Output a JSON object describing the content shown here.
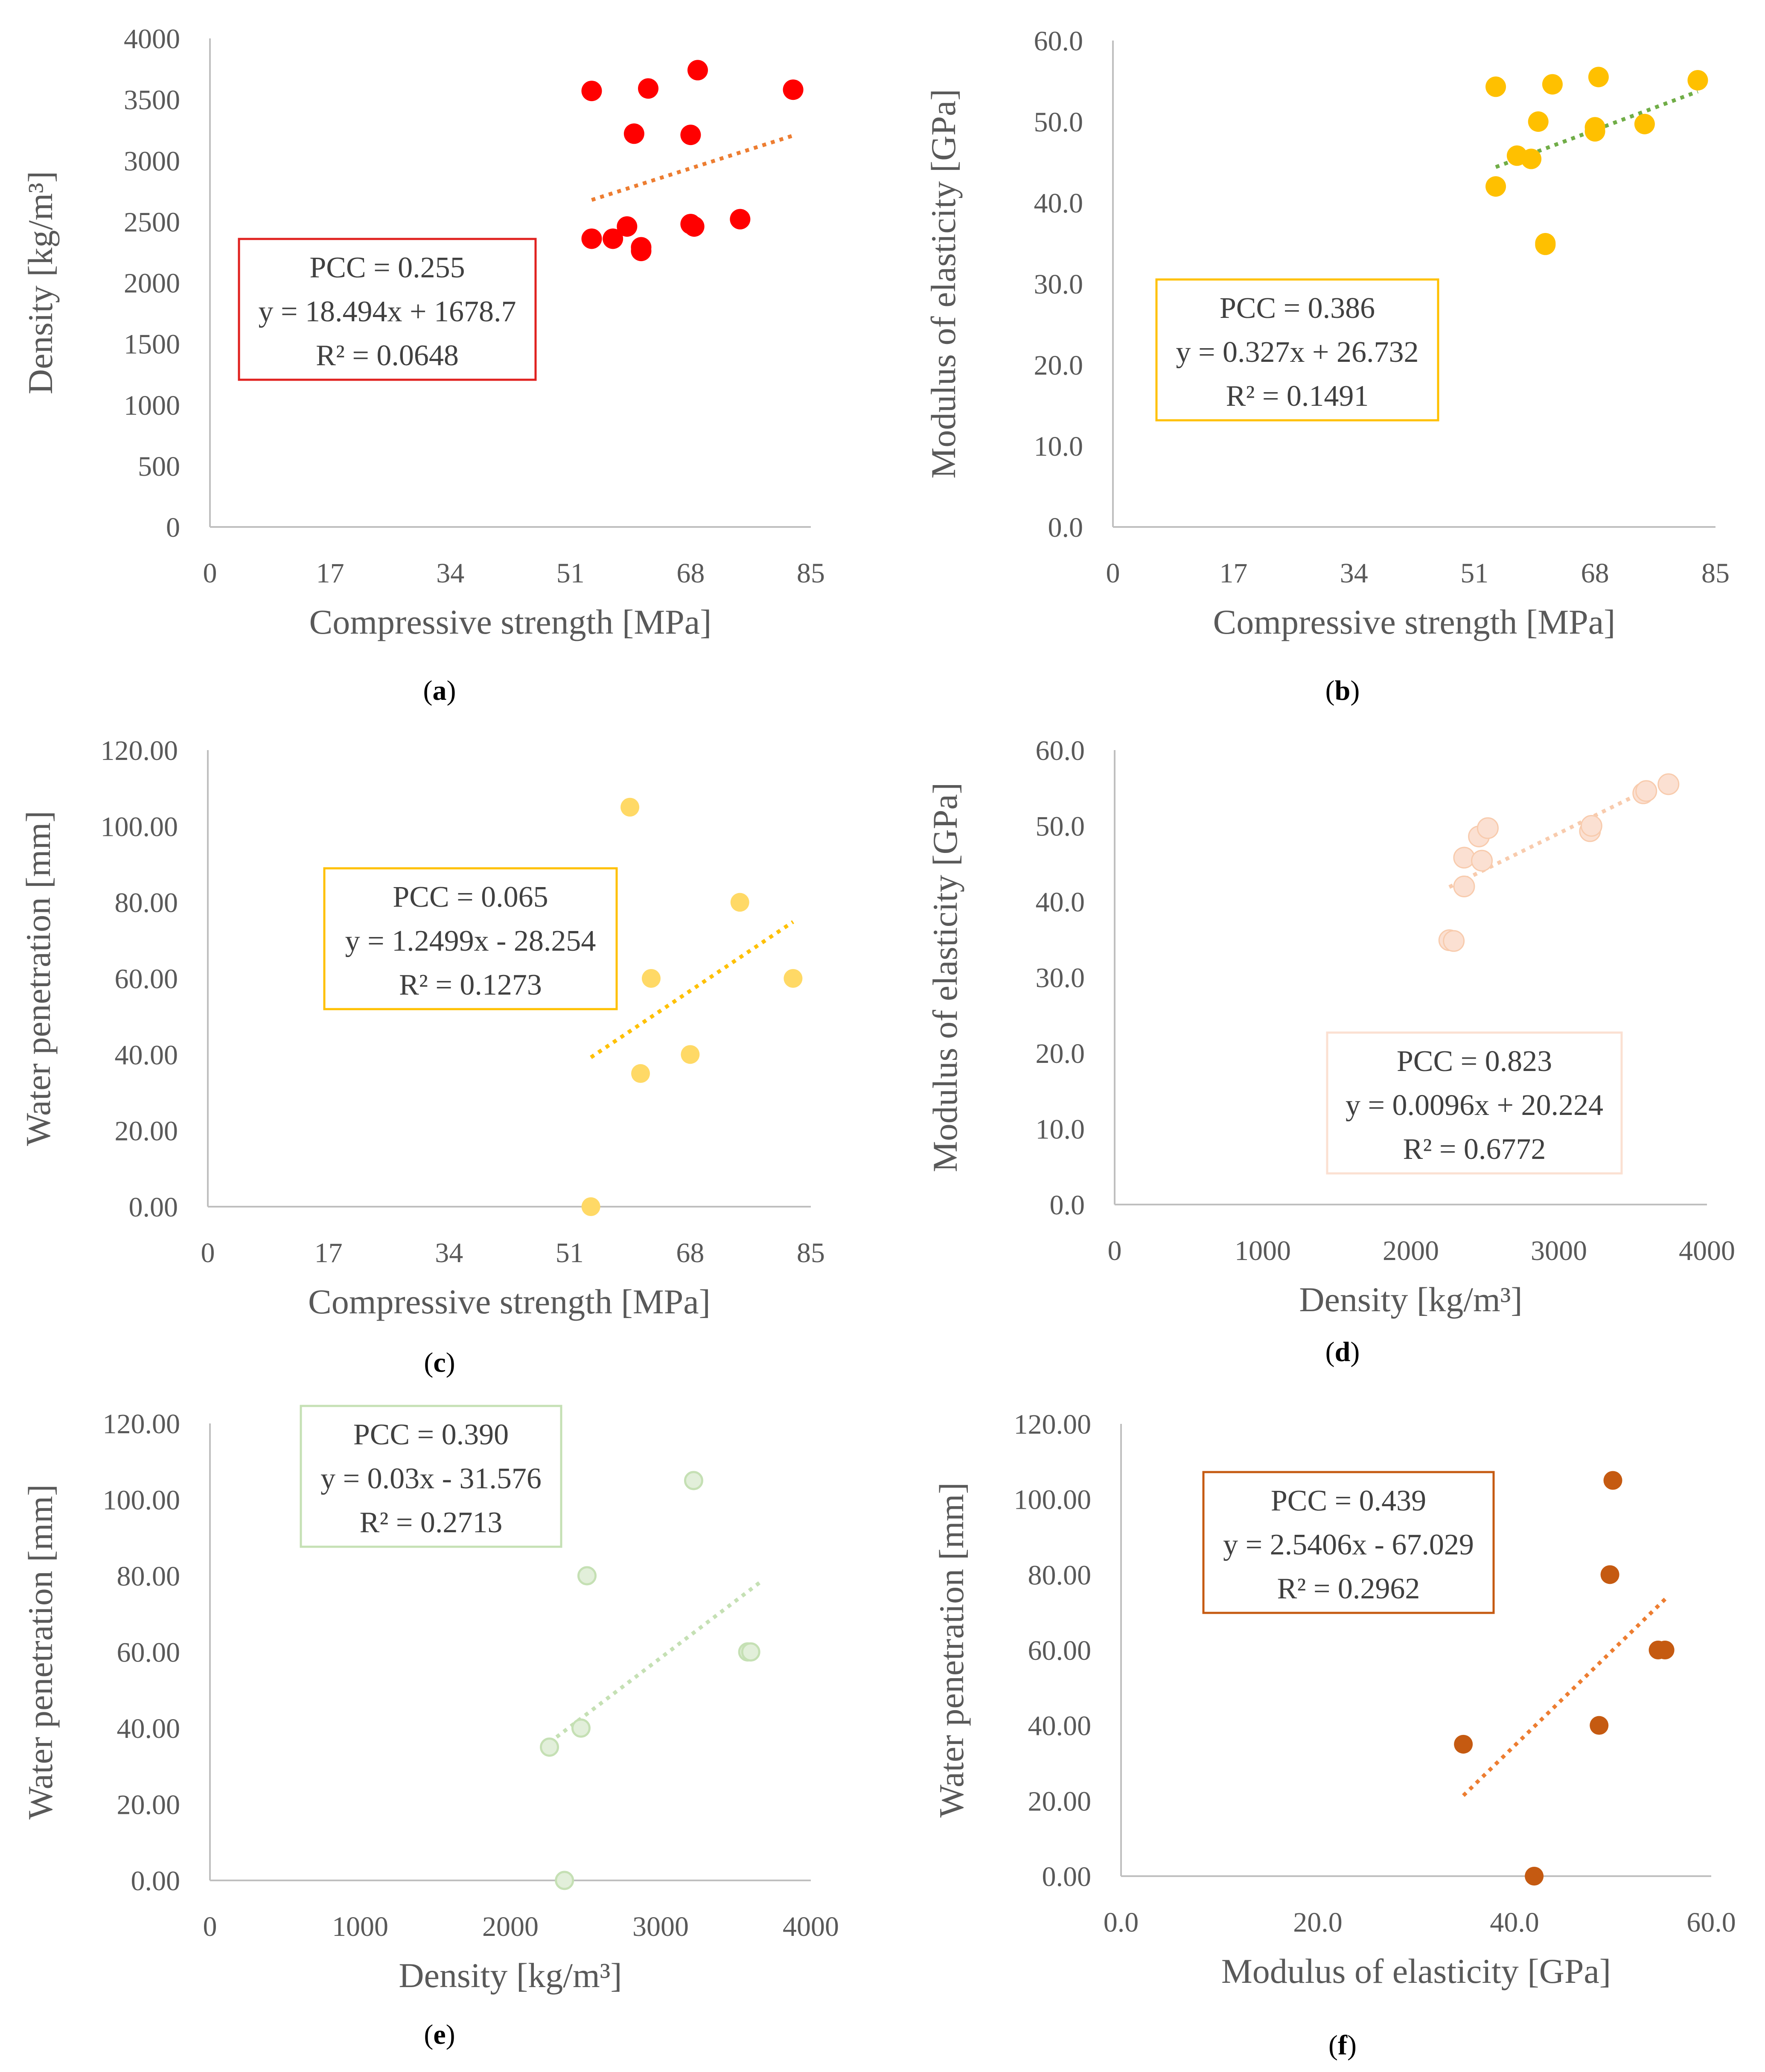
{
  "figure": {
    "panels": [
      "(a)",
      "(b)",
      "(c)",
      "(d)",
      "(e)",
      "(f)"
    ]
  },
  "chart_data": [
    {
      "id": "a",
      "type": "scatter",
      "panel_label": "(a)",
      "panel_letter": "a",
      "color": "#ff0000",
      "trend_color": "#ed7d31",
      "box_color": "#e0211f",
      "xlabel": "Compressive strength [MPa]",
      "ylabel": "Density [kg/m³]",
      "xlim": [
        0,
        85
      ],
      "ylim": [
        0,
        4000
      ],
      "xticks": [
        "0",
        "17",
        "34",
        "51",
        "68",
        "85"
      ],
      "yticks": [
        "0",
        "500",
        "1000",
        "1500",
        "2000",
        "2500",
        "3000",
        "3500",
        "4000"
      ],
      "points": [
        [
          54,
          2360
        ],
        [
          54,
          3570
        ],
        [
          57,
          2360
        ],
        [
          59,
          2460
        ],
        [
          60,
          3220
        ],
        [
          61,
          2290
        ],
        [
          61,
          2260
        ],
        [
          62,
          3590
        ],
        [
          68,
          3210
        ],
        [
          68,
          2480
        ],
        [
          68.5,
          2460
        ],
        [
          69,
          3740
        ],
        [
          75,
          2520
        ],
        [
          82.5,
          3580
        ]
      ],
      "trend": {
        "x": [
          54,
          82.5
        ]
      },
      "stats": [
        "PCC = 0.255",
        "y = 18.494x + 1678.7",
        "R² = 0.0648"
      ]
    },
    {
      "id": "b",
      "type": "scatter",
      "panel_label": "(b)",
      "panel_letter": "b",
      "color": "#ffc000",
      "trend_color": "#70ad47",
      "box_color": "#ffc000",
      "xlabel": "Compressive strength [MPa]",
      "ylabel": "Modulus of elasticity [GPa]",
      "xlim": [
        0,
        85
      ],
      "ylim": [
        0,
        60
      ],
      "xticks": [
        "0",
        "17",
        "34",
        "51",
        "68",
        "85"
      ],
      "yticks": [
        "0.0",
        "10.0",
        "20.0",
        "30.0",
        "40.0",
        "50.0",
        "60.0"
      ],
      "points": [
        [
          54,
          54.3
        ],
        [
          54,
          42
        ],
        [
          57,
          45.8
        ],
        [
          59,
          45.4
        ],
        [
          60,
          50
        ],
        [
          61,
          35
        ],
        [
          61,
          34.8
        ],
        [
          62,
          54.6
        ],
        [
          68,
          49.3
        ],
        [
          68,
          48.8
        ],
        [
          68.5,
          55.5
        ],
        [
          75,
          49.7
        ],
        [
          82.5,
          55.1
        ]
      ],
      "trend": {
        "x": [
          54,
          82.5
        ]
      },
      "stats": [
        "PCC = 0.386",
        "y = 0.327x + 26.732",
        "R² = 0.1491"
      ]
    },
    {
      "id": "c",
      "type": "scatter",
      "panel_label": "(c)",
      "panel_letter": "c",
      "color": "#ffd966",
      "trend_color": "#ffc000",
      "box_color": "#ffc000",
      "xlabel": "Compressive strength [MPa]",
      "ylabel": "Water penetration [mm]",
      "xlim": [
        0,
        85
      ],
      "ylim": [
        0,
        120
      ],
      "xticks": [
        "0",
        "17",
        "34",
        "51",
        "68",
        "85"
      ],
      "yticks": [
        "0.00",
        "20.00",
        "40.00",
        "60.00",
        "80.00",
        "100.00",
        "120.00"
      ],
      "points": [
        [
          54,
          0
        ],
        [
          59.5,
          105
        ],
        [
          61,
          35
        ],
        [
          62.5,
          60
        ],
        [
          68,
          40
        ],
        [
          75,
          80
        ],
        [
          82.5,
          60
        ]
      ],
      "trend": {
        "x": [
          54,
          82.5
        ]
      },
      "stats": [
        "PCC = 0.065",
        "y = 1.2499x - 28.254",
        "R² = 0.1273"
      ]
    },
    {
      "id": "d",
      "type": "scatter",
      "panel_label": "(d)",
      "panel_letter": "d",
      "color": "#fbe0d2",
      "trend_color": "#f8cbad",
      "box_color": "#fbe0d2",
      "xlabel": "Density [kg/m³]",
      "ylabel": "Modulus of elasticity [GPa]",
      "xlim": [
        0,
        4000
      ],
      "ylim": [
        0,
        60
      ],
      "xticks": [
        "0",
        "1000",
        "2000",
        "3000",
        "4000"
      ],
      "yticks": [
        "0.0",
        "10.0",
        "20.0",
        "30.0",
        "40.0",
        "50.0",
        "60.0"
      ],
      "points": [
        [
          2260,
          34.9
        ],
        [
          2290,
          34.8
        ],
        [
          2360,
          45.8
        ],
        [
          2360,
          42
        ],
        [
          2460,
          48.6
        ],
        [
          2480,
          45.4
        ],
        [
          2520,
          49.7
        ],
        [
          3210,
          49.3
        ],
        [
          3220,
          50
        ],
        [
          3570,
          54.3
        ],
        [
          3590,
          54.6
        ],
        [
          3740,
          55.5
        ]
      ],
      "trend": {
        "x": [
          2260,
          3740
        ]
      },
      "stats": [
        "PCC = 0.823",
        "y = 0.0096x + 20.224",
        "R² = 0.6772"
      ]
    },
    {
      "id": "e",
      "type": "scatter",
      "panel_label": "(e)",
      "panel_letter": "e",
      "color": "#e2efda",
      "trend_color": "#c5e0b4",
      "box_color": "#c5e0b4",
      "xlabel": "Density [kg/m³]",
      "ylabel": "Water penetration [mm]",
      "xlim": [
        0,
        4000
      ],
      "ylim": [
        0,
        120
      ],
      "xticks": [
        "0",
        "1000",
        "2000",
        "3000",
        "4000"
      ],
      "yticks": [
        "0.00",
        "20.00",
        "40.00",
        "60.00",
        "80.00",
        "100.00",
        "120.00"
      ],
      "points": [
        [
          2260,
          35
        ],
        [
          2360,
          0
        ],
        [
          2470,
          40
        ],
        [
          2510,
          80
        ],
        [
          3220,
          105
        ],
        [
          3580,
          60
        ],
        [
          3600,
          60
        ]
      ],
      "trend": {
        "x": [
          2260,
          3680
        ]
      },
      "stats": [
        "PCC = 0.390",
        "y = 0.03x - 31.576",
        "R² = 0.2713"
      ]
    },
    {
      "id": "f",
      "type": "scatter",
      "panel_label": "(f)",
      "panel_letter": "f",
      "color": "#c55a11",
      "trend_color": "#ed7d31",
      "box_color": "#c55a11",
      "xlabel": "Modulus of elasticity [GPa]",
      "ylabel": "Water penetration [mm]",
      "xlim": [
        0,
        60
      ],
      "ylim": [
        0,
        120
      ],
      "xticks": [
        "0.0",
        "20.0",
        "40.0",
        "60.0"
      ],
      "yticks": [
        "0.00",
        "20.00",
        "40.00",
        "60.00",
        "80.00",
        "100.00",
        "120.00"
      ],
      "points": [
        [
          34.8,
          35
        ],
        [
          42,
          0
        ],
        [
          48.6,
          40
        ],
        [
          49.7,
          80
        ],
        [
          50,
          105
        ],
        [
          54.6,
          60
        ],
        [
          55.3,
          60
        ]
      ],
      "trend": {
        "x": [
          34.8,
          55.5
        ]
      },
      "stats": [
        "PCC = 0.439",
        "y = 2.5406x - 67.029",
        "R² = 0.2962"
      ]
    }
  ]
}
